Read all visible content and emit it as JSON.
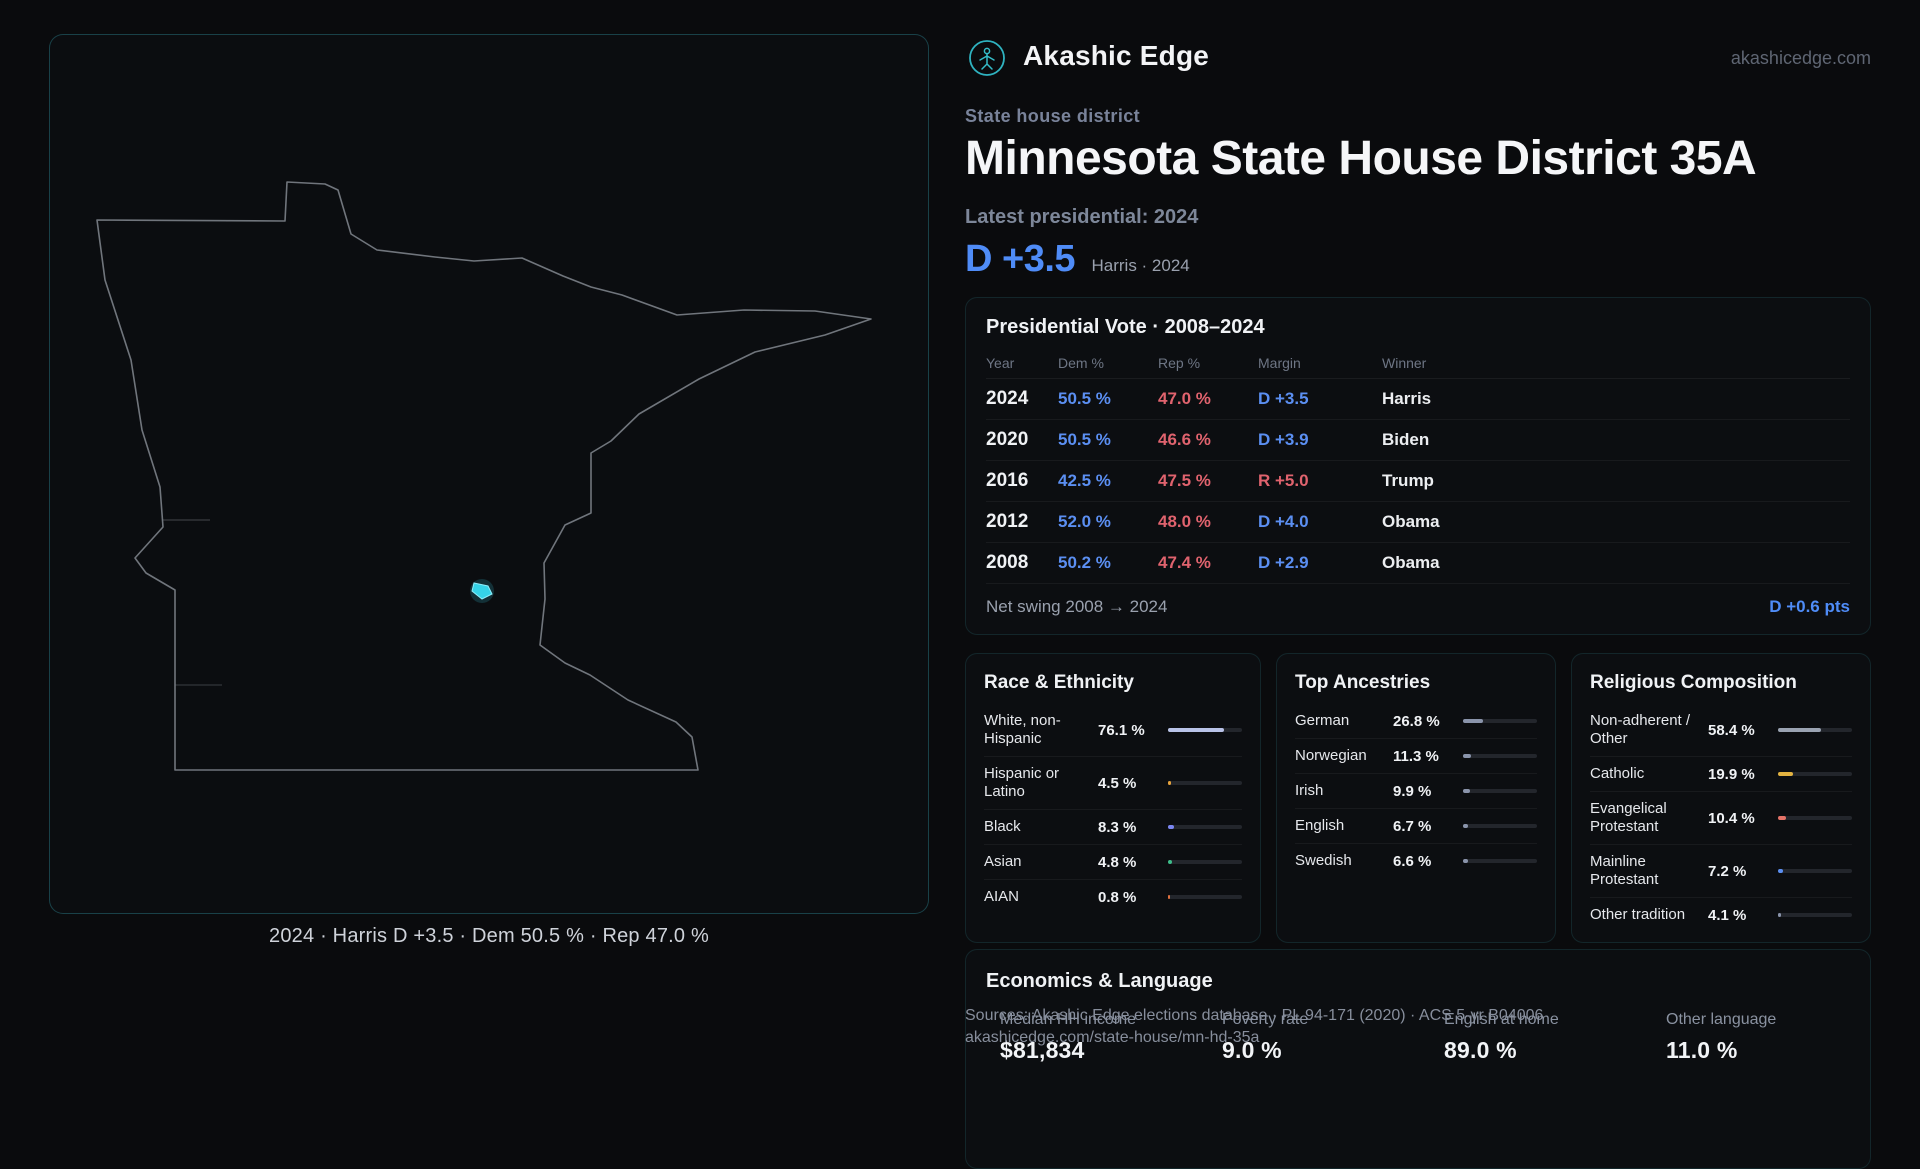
{
  "brand": {
    "name": "Akashic Edge",
    "domain": "akashicedge.com"
  },
  "map": {
    "caption": "2024 · Harris D +3.5 · Dem 50.5 % · Rep 47.0 %"
  },
  "header": {
    "eyebrow": "State house district",
    "title": "Minnesota State House District 35A",
    "latest_label": "Latest presidential: 2024",
    "margin_big": "D +3.5",
    "margin_note": "Harris · 2024"
  },
  "colors": {
    "dem": "#5b8ff2",
    "rep": "#e0636e",
    "accent": "#35d3e8"
  },
  "vote_table": {
    "title": "Presidential Vote · 2008–2024",
    "columns": [
      "Year",
      "Dem %",
      "Rep %",
      "Margin",
      "Winner"
    ],
    "rows": [
      {
        "year": "2024",
        "dem": "50.5 %",
        "rep": "47.0 %",
        "margin": "D +3.5",
        "margin_color": "#5b8ff2",
        "winner": "Harris"
      },
      {
        "year": "2020",
        "dem": "50.5 %",
        "rep": "46.6 %",
        "margin": "D +3.9",
        "margin_color": "#5b8ff2",
        "winner": "Biden"
      },
      {
        "year": "2016",
        "dem": "42.5 %",
        "rep": "47.5 %",
        "margin": "R +5.0",
        "margin_color": "#e0636e",
        "winner": "Trump"
      },
      {
        "year": "2012",
        "dem": "52.0 %",
        "rep": "48.0 %",
        "margin": "D +4.0",
        "margin_color": "#5b8ff2",
        "winner": "Obama"
      },
      {
        "year": "2008",
        "dem": "50.2 %",
        "rep": "47.4 %",
        "margin": "D +2.9",
        "margin_color": "#5b8ff2",
        "winner": "Obama"
      }
    ],
    "footer_label": "Net swing 2008 → 2024",
    "footer_value": "D +0.6 pts"
  },
  "race": {
    "title": "Race & Ethnicity",
    "rows": [
      {
        "label": "White, non-Hispanic",
        "value": "76.1 %",
        "pct": 76.1,
        "color": "#b9c3e8"
      },
      {
        "label": "Hispanic or Latino",
        "value": "4.5 %",
        "pct": 4.5,
        "color": "#e6a23c"
      },
      {
        "label": "Black",
        "value": "8.3 %",
        "pct": 8.3,
        "color": "#7b86f2"
      },
      {
        "label": "Asian",
        "value": "4.8 %",
        "pct": 4.8,
        "color": "#3dbd8a"
      },
      {
        "label": "AIAN",
        "value": "0.8 %",
        "pct": 0.8,
        "color": "#e0713f"
      }
    ]
  },
  "ancestries": {
    "title": "Top Ancestries",
    "rows": [
      {
        "label": "German",
        "value": "26.8 %",
        "pct": 26.8,
        "color": "#8a94ab"
      },
      {
        "label": "Norwegian",
        "value": "11.3 %",
        "pct": 11.3,
        "color": "#8a94ab"
      },
      {
        "label": "Irish",
        "value": "9.9 %",
        "pct": 9.9,
        "color": "#8a94ab"
      },
      {
        "label": "English",
        "value": "6.7 %",
        "pct": 6.7,
        "color": "#8a94ab"
      },
      {
        "label": "Swedish",
        "value": "6.6 %",
        "pct": 6.6,
        "color": "#8a94ab"
      }
    ]
  },
  "religion": {
    "title": "Religious Composition",
    "rows": [
      {
        "label": "Non-adherent / Other",
        "value": "58.4 %",
        "pct": 58.4,
        "color": "#9aa3b2"
      },
      {
        "label": "Catholic",
        "value": "19.9 %",
        "pct": 19.9,
        "color": "#e3b341"
      },
      {
        "label": "Evangelical Protestant",
        "value": "10.4 %",
        "pct": 10.4,
        "color": "#e57368"
      },
      {
        "label": "Mainline Protestant",
        "value": "7.2 %",
        "pct": 7.2,
        "color": "#5b8ff2"
      },
      {
        "label": "Other tradition",
        "value": "4.1 %",
        "pct": 4.1,
        "color": "#8a94ab"
      }
    ]
  },
  "economics": {
    "title": "Economics & Language",
    "stats": [
      {
        "label": "Median HH income",
        "value": "$81,834"
      },
      {
        "label": "Poverty rate",
        "value": "9.0 %"
      },
      {
        "label": "English at home",
        "value": "89.0 %"
      },
      {
        "label": "Other language",
        "value": "11.0 %"
      }
    ]
  },
  "footer": {
    "line1": "Sources: Akashic Edge elections database · PL 94-171 (2020) · ACS 5-yr B04006",
    "line2": "akashicedge.com/state-house/mn-hd-35a"
  }
}
